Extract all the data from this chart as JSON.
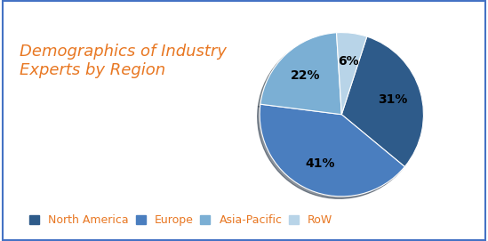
{
  "title": "Demographics of Industry\nExperts by Region",
  "title_color": "#E87722",
  "title_fontsize": 13,
  "labels": [
    "North America",
    "Europe",
    "Asia-Pacific",
    "RoW"
  ],
  "values": [
    31,
    41,
    22,
    6
  ],
  "colors": [
    "#2E5B8A",
    "#4A7EBF",
    "#7BAFD4",
    "#B8D4E8"
  ],
  "background_color": "#FFFFFF",
  "border_color": "#4472C4",
  "startangle": 72,
  "legend_fontsize": 9,
  "autopct_fontsize": 10
}
